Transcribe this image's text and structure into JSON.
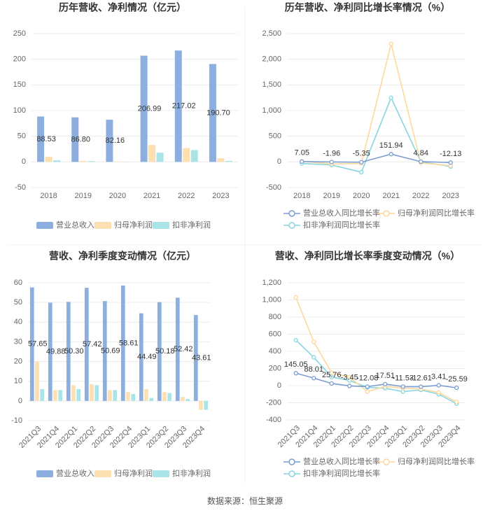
{
  "chart_data": [
    {
      "type": "bar",
      "title": "历年营收、净利情况（亿元）",
      "categories": [
        "2018",
        "2019",
        "2020",
        "2021",
        "2022",
        "2023"
      ],
      "series": [
        {
          "name": "营业总收入",
          "color": "#8cafdf",
          "values": [
            88.53,
            86.8,
            82.16,
            206.99,
            217.02,
            190.7
          ],
          "value_labels": [
            "88.53",
            "86.80",
            "82.16",
            "206.99",
            "217.02",
            "190.70"
          ]
        },
        {
          "name": "归母净利润",
          "color": "#fde0b2",
          "values": [
            10,
            2,
            1,
            33,
            27,
            7
          ]
        },
        {
          "name": "扣非净利润",
          "color": "#abe4e6",
          "values": [
            3,
            1.5,
            0.5,
            18,
            23,
            2
          ]
        }
      ],
      "ylim": [
        -50,
        250
      ],
      "yticks": [
        -50,
        0,
        50,
        100,
        150,
        200,
        250
      ],
      "grid": true,
      "legend": "bottom"
    },
    {
      "type": "line",
      "title": "历年营收、净利同比增长率情况（%）",
      "categories": [
        "2018",
        "2019",
        "2020",
        "2021",
        "2022",
        "2023"
      ],
      "series": [
        {
          "name": "营业总收入同比增长率",
          "color": "#7b9dd2",
          "values": [
            7.05,
            -1.96,
            -5.35,
            151.94,
            4.84,
            -12.13
          ],
          "show_labels": true
        },
        {
          "name": "归母净利润同比增长率",
          "color": "#fdd89c",
          "values": [
            10,
            -40,
            -30,
            2300,
            -20,
            -75
          ]
        },
        {
          "name": "扣非净利润同比增长率",
          "color": "#86d6e2",
          "values": [
            -30,
            -60,
            -200,
            1250,
            0,
            -90
          ]
        }
      ],
      "ylim": [
        -500,
        2500
      ],
      "yticks": [
        -500,
        0,
        500,
        {
          "value": 1000,
          "label": "1,000"
        },
        {
          "value": 1500,
          "label": "1,500"
        },
        {
          "value": 2000,
          "label": "2,000"
        },
        {
          "value": 2500,
          "label": "2,500"
        }
      ],
      "grid": true,
      "legend": "bottom"
    },
    {
      "type": "bar",
      "title": "营收、净利季度变动情况（亿元）",
      "categories": [
        "2021Q3",
        "2021Q4",
        "2022Q1",
        "2022Q2",
        "2022Q3",
        "2022Q4",
        "2023Q1",
        "2023Q2",
        "2023Q3",
        "2023Q4"
      ],
      "series": [
        {
          "name": "营业总收入",
          "color": "#8cafdf",
          "values": [
            57.65,
            49.88,
            50.3,
            57.42,
            50.69,
            58.61,
            44.49,
            50.18,
            52.42,
            43.61
          ],
          "value_labels": [
            "57.65",
            "49.88",
            "50.30",
            "57.42",
            "50.69",
            "58.61",
            "44.49",
            "50.18",
            "52.42",
            "43.61"
          ]
        },
        {
          "name": "归母净利润",
          "color": "#fde0b2",
          "values": [
            20,
            5.5,
            8,
            8.5,
            5.5,
            4.5,
            6,
            4.5,
            2,
            -4.5
          ]
        },
        {
          "name": "扣非净利润",
          "color": "#abe4e6",
          "values": [
            6,
            5.5,
            6,
            8,
            5.5,
            3.5,
            1.5,
            4,
            1,
            -4.5
          ]
        }
      ],
      "ylim": [
        -10,
        60
      ],
      "yticks": [
        -10,
        0,
        10,
        20,
        30,
        40,
        50,
        60
      ],
      "grid": true,
      "legend": "bottom"
    },
    {
      "type": "line",
      "title": "营收、净利同比增长率季度变动情况（%）",
      "categories": [
        "2021Q3",
        "2021Q4",
        "2022Q1",
        "2022Q2",
        "2022Q3",
        "2022Q4",
        "2023Q1",
        "2023Q2",
        "2023Q3",
        "2023Q4"
      ],
      "series": [
        {
          "name": "营业总收入同比增长率",
          "color": "#7b9dd2",
          "values": [
            145.05,
            88.01,
            25.76,
            -3.45,
            -12.08,
            17.51,
            -11.53,
            -12.61,
            3.41,
            -25.59
          ],
          "show_labels": true
        },
        {
          "name": "归母净利润同比增长率",
          "color": "#fdd89c",
          "values": [
            1030,
            510,
            150,
            100,
            -70,
            -10,
            -30,
            -40,
            -80,
            -190
          ]
        },
        {
          "name": "扣非净利润同比增长率",
          "color": "#86d6e2",
          "values": [
            530,
            330,
            100,
            60,
            -20,
            -30,
            -70,
            -50,
            -100,
            -210
          ]
        }
      ],
      "ylim": [
        -400,
        1200
      ],
      "yticks": [
        -400,
        -200,
        0,
        200,
        400,
        600,
        800,
        {
          "value": 1000,
          "label": "1,000"
        },
        {
          "value": 1200,
          "label": "1,200"
        }
      ],
      "grid": true,
      "legend": "bottom"
    }
  ],
  "source": "数据来源：恒生聚源"
}
